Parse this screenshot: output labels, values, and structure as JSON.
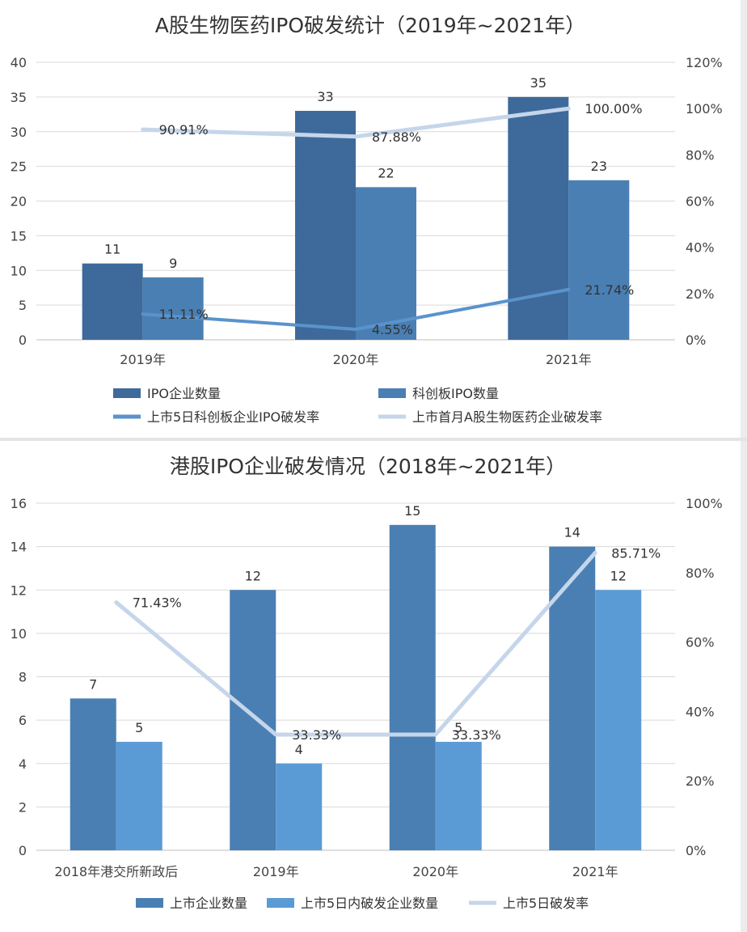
{
  "colors": {
    "dark_bar": "#3d6a9a",
    "mid_bar": "#4a7fb3",
    "light_bar": "#5b9bd5",
    "line_mid": "#5a93cc",
    "line_light": "#c5d6ea",
    "grid": "#d9d9d9"
  },
  "chart_data": [
    {
      "type": "bar",
      "title": "A股生物医药IPO破发统计（2019年~2021年）",
      "categories": [
        "2019年",
        "2020年",
        "2021年"
      ],
      "ylim": [
        0,
        40
      ],
      "y2lim": [
        0,
        1.2
      ],
      "y_ticks": [
        "0",
        "5",
        "10",
        "15",
        "20",
        "25",
        "30",
        "35",
        "40"
      ],
      "y2_ticks": [
        "0%",
        "20%",
        "40%",
        "60%",
        "80%",
        "100%",
        "120%"
      ],
      "series": [
        {
          "name": "IPO企业数量",
          "kind": "bar",
          "values": [
            11,
            33,
            35
          ],
          "labels": [
            "11",
            "33",
            "35"
          ],
          "color": "#3d6a9a"
        },
        {
          "name": "科创板IPO数量",
          "kind": "bar",
          "values": [
            9,
            22,
            23
          ],
          "labels": [
            "9",
            "22",
            "23"
          ],
          "color": "#4a7fb3"
        },
        {
          "name": "上市5日科创板企业IPO破发率",
          "kind": "line",
          "axis": "right",
          "values": [
            0.1111,
            0.0455,
            0.2174
          ],
          "labels": [
            "11.11%",
            "4.55%",
            "21.74%"
          ],
          "color": "#5a93cc"
        },
        {
          "name": "上市首月A股生物医药企业破发率",
          "kind": "line",
          "axis": "right",
          "values": [
            0.9091,
            0.8788,
            1.0
          ],
          "labels": [
            "90.91%",
            "87.88%",
            "100.00%"
          ],
          "color": "#c5d6ea"
        }
      ],
      "legend": "bottom"
    },
    {
      "type": "bar",
      "title": "港股IPO企业破发情况（2018年~2021年）",
      "categories": [
        "2018年港交所新政后",
        "2019年",
        "2020年",
        "2021年"
      ],
      "ylim": [
        0,
        16
      ],
      "y2lim": [
        0,
        1.0
      ],
      "y_ticks": [
        "0",
        "2",
        "4",
        "6",
        "8",
        "10",
        "12",
        "14",
        "16"
      ],
      "y2_ticks": [
        "0%",
        "20%",
        "40%",
        "60%",
        "80%",
        "100%"
      ],
      "series": [
        {
          "name": "上市企业数量",
          "kind": "bar",
          "values": [
            7,
            12,
            15,
            14
          ],
          "labels": [
            "7",
            "12",
            "15",
            "14"
          ],
          "color": "#4a7fb3"
        },
        {
          "name": "上市5日内破发企业数量",
          "kind": "bar",
          "values": [
            5,
            4,
            5,
            12
          ],
          "labels": [
            "5",
            "4",
            "5",
            "12"
          ],
          "color": "#5b9bd5"
        },
        {
          "name": "上市5日破发率",
          "kind": "line",
          "axis": "right",
          "values": [
            0.7143,
            0.3333,
            0.3333,
            0.8571
          ],
          "labels": [
            "71.43%",
            "33.33%",
            "33.33%",
            "85.71%"
          ],
          "color": "#c5d6ea"
        }
      ],
      "legend": "bottom"
    }
  ]
}
